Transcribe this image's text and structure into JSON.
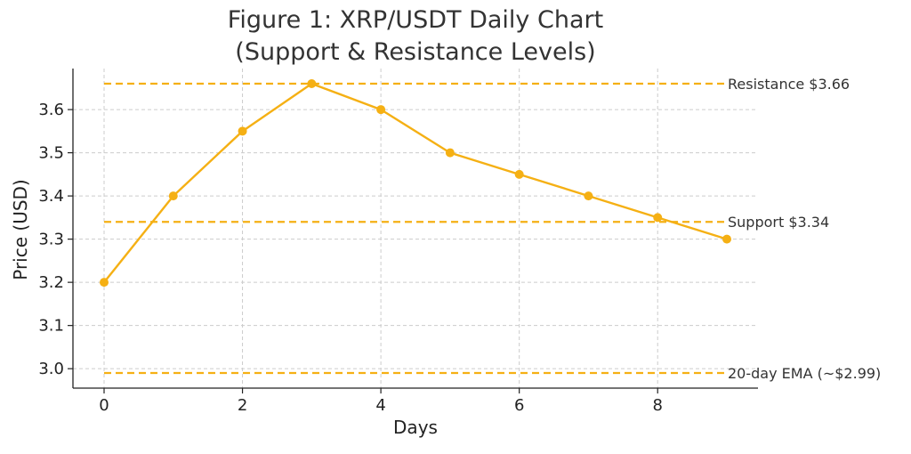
{
  "chart_data": {
    "type": "line",
    "title": [
      "Figure 1: XRP/USDT Daily Chart",
      "(Support & Resistance Levels)"
    ],
    "xlabel": "Days",
    "ylabel": "Price (USD)",
    "xlim": [
      -0.45,
      9.45
    ],
    "ylim": [
      2.955,
      3.695
    ],
    "x_ticks": [
      0,
      2,
      4,
      6,
      8
    ],
    "y_ticks": [
      3.0,
      3.1,
      3.2,
      3.3,
      3.4,
      3.5,
      3.6
    ],
    "y_tick_labels": [
      "3.0",
      "3.1",
      "3.2",
      "3.3",
      "3.4",
      "3.5",
      "3.6"
    ],
    "grid": true,
    "line_color": "#f5b014",
    "series": [
      {
        "x": [
          0,
          1,
          2,
          3,
          4,
          5,
          6,
          7,
          8,
          9
        ],
        "values": [
          3.2,
          3.4,
          3.55,
          3.66,
          3.6,
          3.5,
          3.45,
          3.4,
          3.35,
          3.3
        ]
      }
    ],
    "reference_lines": [
      {
        "label": "Resistance $3.66",
        "y": 3.66
      },
      {
        "label": "Support $3.34",
        "y": 3.34
      },
      {
        "label": "20-day EMA (~$2.99)",
        "y": 2.99
      }
    ]
  }
}
